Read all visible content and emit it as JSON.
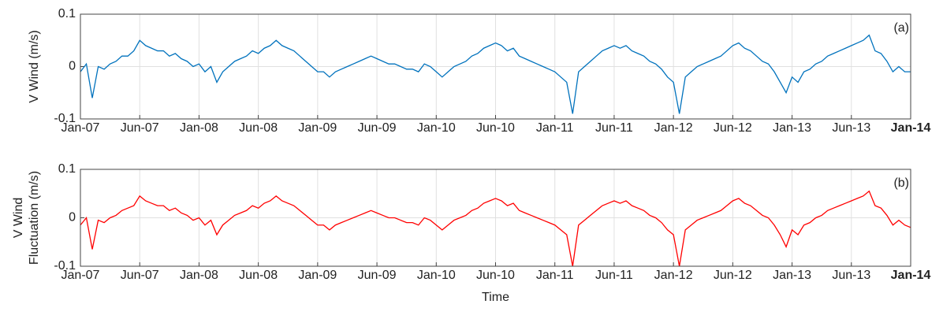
{
  "chart_data": [
    {
      "type": "line",
      "ylabel": [
        "V Wind (m/s)"
      ],
      "annotation": "(a)",
      "color": "#0072bd",
      "grid": true,
      "xlim": [
        0,
        14
      ],
      "ylim": [
        -0.1,
        0.1
      ],
      "yticks": [
        -0.1,
        0,
        0.1
      ],
      "xticks": [
        {
          "value": 0,
          "label": "Jan-07"
        },
        {
          "value": 1,
          "label": "Jun-07"
        },
        {
          "value": 2,
          "label": "Jan-08"
        },
        {
          "value": 3,
          "label": "Jun-08"
        },
        {
          "value": 4,
          "label": "Jan-09"
        },
        {
          "value": 5,
          "label": "Jun-09"
        },
        {
          "value": 6,
          "label": "Jan-10"
        },
        {
          "value": 7,
          "label": "Jun-10"
        },
        {
          "value": 8,
          "label": "Jan-11"
        },
        {
          "value": 9,
          "label": "Jun-11"
        },
        {
          "value": 10,
          "label": "Jan-12"
        },
        {
          "value": 11,
          "label": "Jun-12"
        },
        {
          "value": 12,
          "label": "Jan-13"
        },
        {
          "value": 13,
          "label": "Jun-13"
        },
        {
          "value": 14,
          "label": "Jan-14"
        }
      ],
      "x": [
        0,
        0.1,
        0.2,
        0.3,
        0.4,
        0.5,
        0.6,
        0.7,
        0.8,
        0.9,
        1,
        1.1,
        1.2,
        1.3,
        1.4,
        1.5,
        1.6,
        1.7,
        1.8,
        1.9,
        2,
        2.1,
        2.2,
        2.3,
        2.4,
        2.5,
        2.6,
        2.7,
        2.8,
        2.9,
        3,
        3.1,
        3.2,
        3.3,
        3.4,
        3.5,
        3.6,
        3.7,
        3.8,
        3.9,
        4,
        4.1,
        4.2,
        4.3,
        4.4,
        4.5,
        4.6,
        4.7,
        4.8,
        4.9,
        5,
        5.1,
        5.2,
        5.3,
        5.4,
        5.5,
        5.6,
        5.7,
        5.8,
        5.9,
        6,
        6.1,
        6.2,
        6.3,
        6.4,
        6.5,
        6.6,
        6.7,
        6.8,
        6.9,
        7,
        7.1,
        7.2,
        7.3,
        7.4,
        7.5,
        7.6,
        7.7,
        7.8,
        7.9,
        8,
        8.1,
        8.2,
        8.3,
        8.4,
        8.5,
        8.6,
        8.7,
        8.8,
        8.9,
        9,
        9.1,
        9.2,
        9.3,
        9.4,
        9.5,
        9.6,
        9.7,
        9.8,
        9.9,
        10,
        10.1,
        10.2,
        10.3,
        10.4,
        10.5,
        10.6,
        10.7,
        10.8,
        10.9,
        11,
        11.1,
        11.2,
        11.3,
        11.4,
        11.5,
        11.6,
        11.7,
        11.8,
        11.9,
        12,
        12.1,
        12.2,
        12.3,
        12.4,
        12.5,
        12.6,
        12.7,
        12.8,
        12.9,
        13,
        13.1,
        13.2,
        13.3,
        13.4,
        13.5,
        13.6,
        13.7,
        13.8,
        13.9,
        14
      ],
      "values": [
        -0.01,
        0.005,
        -0.06,
        0.0,
        -0.005,
        0.005,
        0.01,
        0.02,
        0.02,
        0.03,
        0.05,
        0.04,
        0.035,
        0.03,
        0.03,
        0.02,
        0.025,
        0.015,
        0.01,
        0.0,
        0.005,
        -0.01,
        0.0,
        -0.03,
        -0.01,
        0.0,
        0.01,
        0.015,
        0.02,
        0.03,
        0.025,
        0.035,
        0.04,
        0.05,
        0.04,
        0.035,
        0.03,
        0.02,
        0.01,
        0.0,
        -0.01,
        -0.01,
        -0.02,
        -0.01,
        -0.005,
        0.0,
        0.005,
        0.01,
        0.015,
        0.02,
        0.015,
        0.01,
        0.005,
        0.005,
        0.0,
        -0.005,
        -0.005,
        -0.01,
        0.005,
        0.0,
        -0.01,
        -0.02,
        -0.01,
        0.0,
        0.005,
        0.01,
        0.02,
        0.025,
        0.035,
        0.04,
        0.045,
        0.04,
        0.03,
        0.035,
        0.02,
        0.015,
        0.01,
        0.005,
        0.0,
        -0.005,
        -0.01,
        -0.02,
        -0.03,
        -0.09,
        -0.01,
        0.0,
        0.01,
        0.02,
        0.03,
        0.035,
        0.04,
        0.035,
        0.04,
        0.03,
        0.025,
        0.02,
        0.01,
        0.005,
        -0.005,
        -0.02,
        -0.03,
        -0.09,
        -0.02,
        -0.01,
        0.0,
        0.005,
        0.01,
        0.015,
        0.02,
        0.03,
        0.04,
        0.045,
        0.035,
        0.03,
        0.02,
        0.01,
        0.005,
        -0.01,
        -0.03,
        -0.05,
        -0.02,
        -0.03,
        -0.01,
        -0.005,
        0.005,
        0.01,
        0.02,
        0.025,
        0.03,
        0.035,
        0.04,
        0.045,
        0.05,
        0.06,
        0.03,
        0.025,
        0.01,
        -0.01,
        0.0,
        -0.01,
        -0.01
      ]
    },
    {
      "type": "line",
      "ylabel": [
        "V Wind",
        "Fluctuation (m/s)"
      ],
      "annotation": "(b)",
      "color": "#ff0000",
      "grid": true,
      "xlabel": "Time",
      "xlim": [
        0,
        14
      ],
      "ylim": [
        -0.1,
        0.1
      ],
      "yticks": [
        -0.1,
        0,
        0.1
      ],
      "xticks": [
        {
          "value": 0,
          "label": "Jan-07"
        },
        {
          "value": 1,
          "label": "Jun-07"
        },
        {
          "value": 2,
          "label": "Jan-08"
        },
        {
          "value": 3,
          "label": "Jun-08"
        },
        {
          "value": 4,
          "label": "Jan-09"
        },
        {
          "value": 5,
          "label": "Jun-09"
        },
        {
          "value": 6,
          "label": "Jan-10"
        },
        {
          "value": 7,
          "label": "Jun-10"
        },
        {
          "value": 8,
          "label": "Jan-11"
        },
        {
          "value": 9,
          "label": "Jun-11"
        },
        {
          "value": 10,
          "label": "Jan-12"
        },
        {
          "value": 11,
          "label": "Jun-12"
        },
        {
          "value": 12,
          "label": "Jan-13"
        },
        {
          "value": 13,
          "label": "Jun-13"
        },
        {
          "value": 14,
          "label": "Jan-14"
        }
      ],
      "x": [
        0,
        0.1,
        0.2,
        0.3,
        0.4,
        0.5,
        0.6,
        0.7,
        0.8,
        0.9,
        1,
        1.1,
        1.2,
        1.3,
        1.4,
        1.5,
        1.6,
        1.7,
        1.8,
        1.9,
        2,
        2.1,
        2.2,
        2.3,
        2.4,
        2.5,
        2.6,
        2.7,
        2.8,
        2.9,
        3,
        3.1,
        3.2,
        3.3,
        3.4,
        3.5,
        3.6,
        3.7,
        3.8,
        3.9,
        4,
        4.1,
        4.2,
        4.3,
        4.4,
        4.5,
        4.6,
        4.7,
        4.8,
        4.9,
        5,
        5.1,
        5.2,
        5.3,
        5.4,
        5.5,
        5.6,
        5.7,
        5.8,
        5.9,
        6,
        6.1,
        6.2,
        6.3,
        6.4,
        6.5,
        6.6,
        6.7,
        6.8,
        6.9,
        7,
        7.1,
        7.2,
        7.3,
        7.4,
        7.5,
        7.6,
        7.7,
        7.8,
        7.9,
        8,
        8.1,
        8.2,
        8.3,
        8.4,
        8.5,
        8.6,
        8.7,
        8.8,
        8.9,
        9,
        9.1,
        9.2,
        9.3,
        9.4,
        9.5,
        9.6,
        9.7,
        9.8,
        9.9,
        10,
        10.1,
        10.2,
        10.3,
        10.4,
        10.5,
        10.6,
        10.7,
        10.8,
        10.9,
        11,
        11.1,
        11.2,
        11.3,
        11.4,
        11.5,
        11.6,
        11.7,
        11.8,
        11.9,
        12,
        12.1,
        12.2,
        12.3,
        12.4,
        12.5,
        12.6,
        12.7,
        12.8,
        12.9,
        13,
        13.1,
        13.2,
        13.3,
        13.4,
        13.5,
        13.6,
        13.7,
        13.8,
        13.9,
        14
      ],
      "values": [
        -0.015,
        0.0,
        -0.065,
        -0.005,
        -0.01,
        0.0,
        0.005,
        0.015,
        0.02,
        0.025,
        0.045,
        0.035,
        0.03,
        0.025,
        0.025,
        0.015,
        0.02,
        0.01,
        0.005,
        -0.005,
        0.0,
        -0.015,
        -0.005,
        -0.035,
        -0.015,
        -0.005,
        0.005,
        0.01,
        0.015,
        0.025,
        0.02,
        0.03,
        0.035,
        0.045,
        0.035,
        0.03,
        0.025,
        0.015,
        0.005,
        -0.005,
        -0.015,
        -0.015,
        -0.025,
        -0.015,
        -0.01,
        -0.005,
        0.0,
        0.005,
        0.01,
        0.015,
        0.01,
        0.005,
        0.0,
        0.0,
        -0.005,
        -0.01,
        -0.01,
        -0.015,
        0.0,
        -0.005,
        -0.015,
        -0.025,
        -0.015,
        -0.005,
        0.0,
        0.005,
        0.015,
        0.02,
        0.03,
        0.035,
        0.04,
        0.035,
        0.025,
        0.03,
        0.015,
        0.01,
        0.005,
        0.0,
        -0.005,
        -0.01,
        -0.015,
        -0.025,
        -0.035,
        -0.1,
        -0.015,
        -0.005,
        0.005,
        0.015,
        0.025,
        0.03,
        0.035,
        0.03,
        0.035,
        0.025,
        0.02,
        0.015,
        0.005,
        0.0,
        -0.01,
        -0.025,
        -0.035,
        -0.1,
        -0.025,
        -0.015,
        -0.005,
        0.0,
        0.005,
        0.01,
        0.015,
        0.025,
        0.035,
        0.04,
        0.03,
        0.025,
        0.015,
        0.005,
        0.0,
        -0.015,
        -0.035,
        -0.06,
        -0.025,
        -0.035,
        -0.015,
        -0.01,
        0.0,
        0.005,
        0.015,
        0.02,
        0.025,
        0.03,
        0.035,
        0.04,
        0.045,
        0.055,
        0.025,
        0.02,
        0.005,
        -0.015,
        -0.005,
        -0.015,
        -0.02
      ]
    }
  ]
}
